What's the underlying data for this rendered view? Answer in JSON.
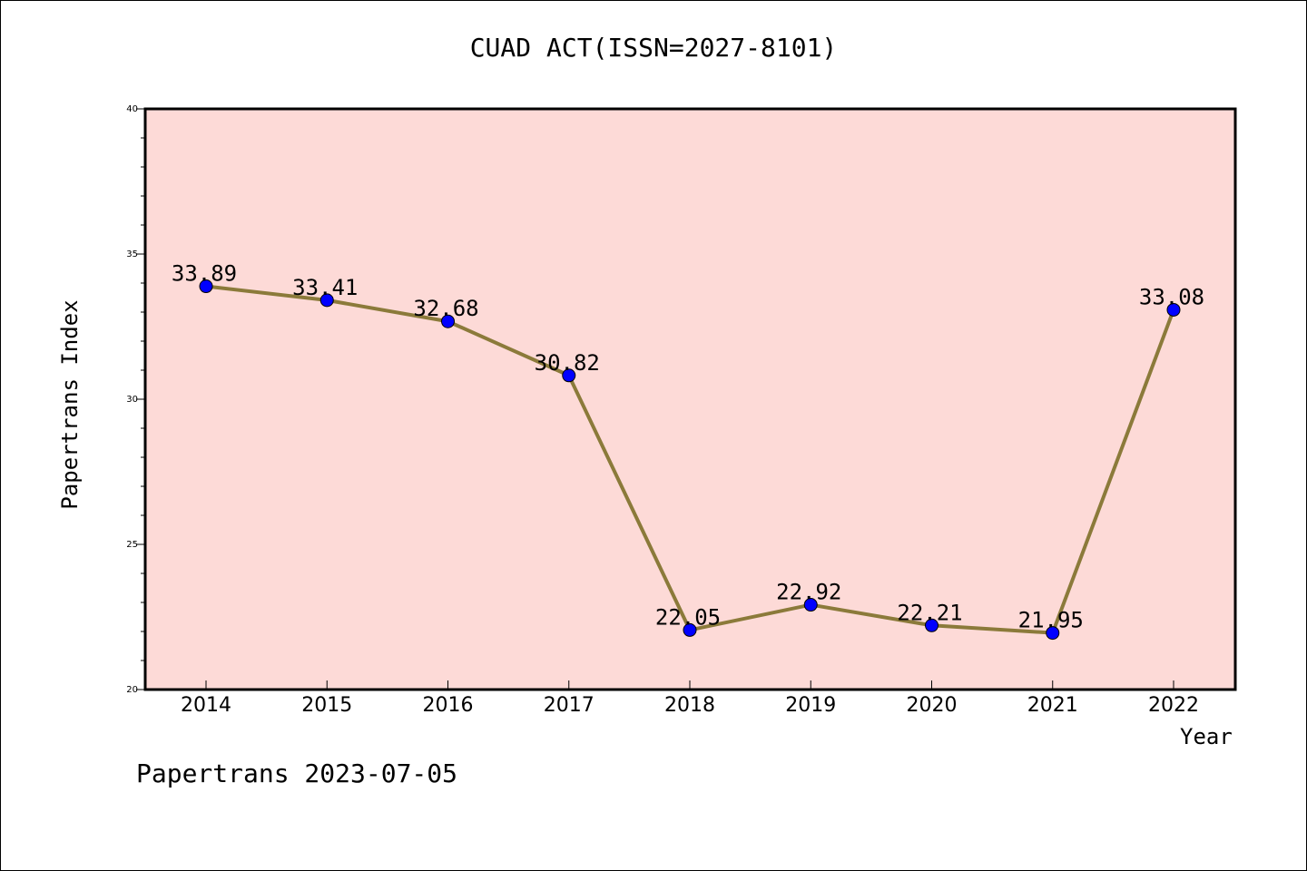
{
  "chart_data": {
    "type": "line",
    "title": "CUAD ACT(ISSN=2027-8101)",
    "xlabel": "Year",
    "ylabel": "Papertrans Index",
    "categories": [
      "2014",
      "2015",
      "2016",
      "2017",
      "2018",
      "2019",
      "2020",
      "2021",
      "2022"
    ],
    "series": [
      {
        "values": [
          33.89,
          33.41,
          32.68,
          30.82,
          22.05,
          22.92,
          22.21,
          21.95,
          33.08
        ]
      }
    ],
    "data_labels": [
      "33.89",
      "33.41",
      "32.68",
      "30.82",
      "22.05",
      "22.92",
      "22.21",
      "21.95",
      "33.08"
    ],
    "ylim": [
      20,
      40
    ],
    "yticks": [
      "20",
      "25",
      "30",
      "35",
      "40"
    ],
    "grid": false,
    "plot_background": "#fddad7",
    "line_color": "#8b7a3a",
    "marker_color": "#0000ff"
  },
  "footer": "Papertrans 2023-07-05"
}
